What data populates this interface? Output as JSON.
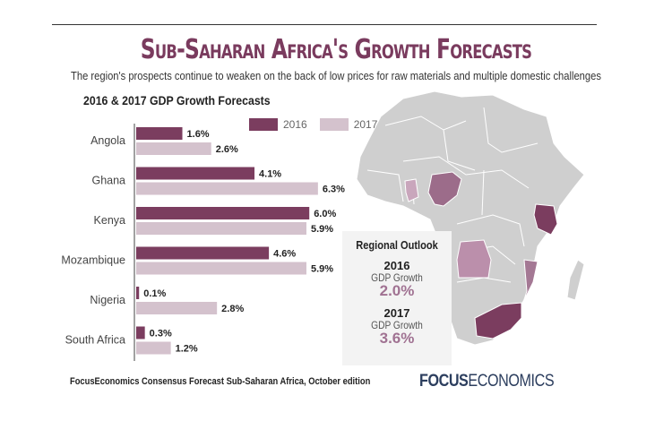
{
  "header": {
    "title": "Sub-Saharan Africa's Growth Forecasts",
    "subtitle": "The region's prospects continue to weaken on the back of low prices for raw materials and multiple domestic challenges"
  },
  "chart_data": {
    "type": "bar",
    "orientation": "horizontal",
    "title": "2016 & 2017 GDP Growth Forecasts",
    "categories": [
      "Angola",
      "Ghana",
      "Kenya",
      "Mozambique",
      "Nigeria",
      "South Africa"
    ],
    "series": [
      {
        "name": "2016",
        "color": "#7b3d5f",
        "values": [
          1.6,
          4.1,
          6.0,
          4.6,
          0.1,
          0.3
        ],
        "labels": [
          "1.6%",
          "4.1%",
          "6.0%",
          "4.6%",
          "0.1%",
          "0.3%"
        ]
      },
      {
        "name": "2017",
        "color": "#d4c2cd",
        "values": [
          2.6,
          6.3,
          5.9,
          5.9,
          2.8,
          1.2
        ],
        "labels": [
          "2.6%",
          "6.3%",
          "5.9%",
          "5.9%",
          "2.8%",
          "1.2%"
        ]
      }
    ],
    "xlabel": "",
    "ylabel": "",
    "xlim": [
      0,
      6.5
    ],
    "grid": false,
    "legend": "top-right"
  },
  "regional_outlook": {
    "heading": "Regional Outlook",
    "items": [
      {
        "year": "2016",
        "label": "GDP Growth",
        "value": "2.0%"
      },
      {
        "year": "2017",
        "label": "GDP Growth",
        "value": "3.6%"
      }
    ]
  },
  "map": {
    "highlighted": [
      {
        "country": "Angola",
        "color": "#bb8fab"
      },
      {
        "country": "Ghana",
        "color": "#c9a6bc"
      },
      {
        "country": "Nigeria",
        "color": "#9c6c8a"
      },
      {
        "country": "Kenya",
        "color": "#7b3d5f"
      },
      {
        "country": "Mozambique",
        "color": "#a47894"
      },
      {
        "country": "South Africa",
        "color": "#7b3d5f"
      }
    ],
    "base_color": "#cfcfcf"
  },
  "footer": {
    "source": "FocusEconomics Consensus Forecast Sub-Saharan Africa, October edition",
    "logo_bold": "FOCUS",
    "logo_rest": "ECONOMICS"
  }
}
